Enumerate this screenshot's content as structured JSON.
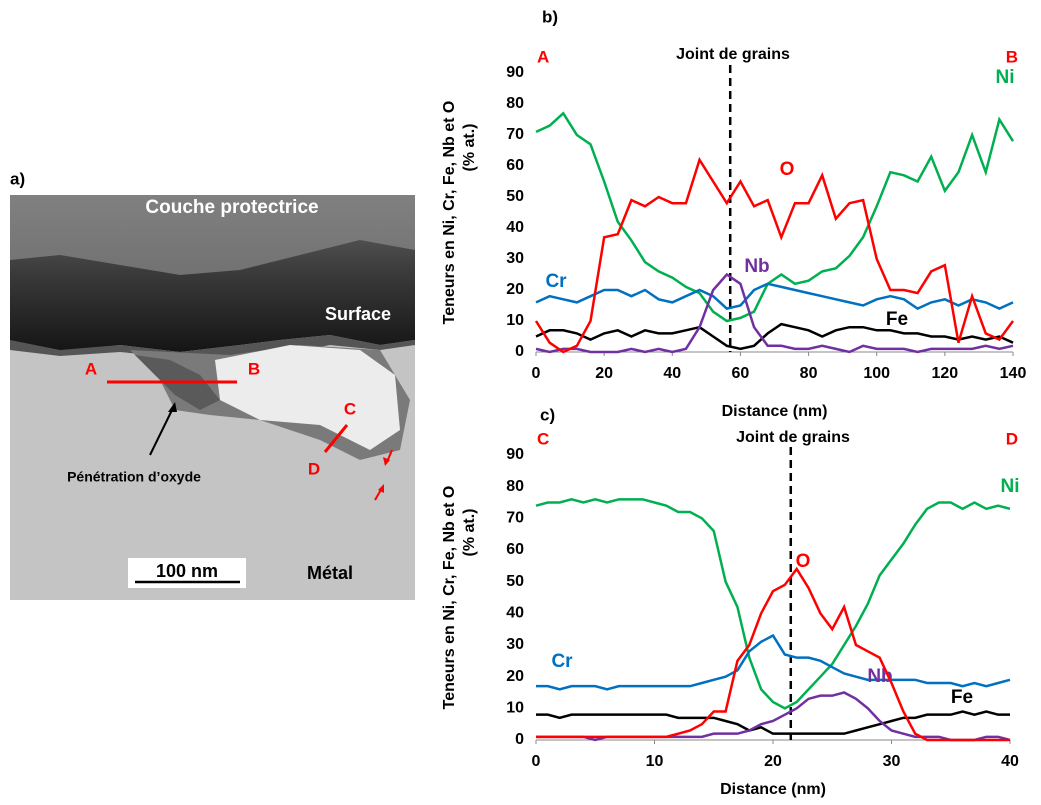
{
  "panel_a": {
    "label": "a)",
    "coating": "Couche protectrice",
    "surface": "Surface",
    "point_a": "A",
    "point_b": "B",
    "point_c": "C",
    "point_d": "D",
    "oxide": "Pénétration d’oxyde",
    "scale": "100 nm",
    "metal": "Métal"
  },
  "chart_data": [
    {
      "type": "line",
      "panel": "b)",
      "start": "A",
      "end": "B",
      "annotation": "Joint de grains",
      "boundary_x": 57,
      "y_label": "Teneurs en Ni, Cr, Fe, Nb et O",
      "y_label_unit": "(% at.)",
      "x_label": "Distance (nm)",
      "xlim": [
        0,
        140
      ],
      "xticks": [
        0,
        20,
        40,
        60,
        80,
        100,
        120,
        140
      ],
      "ylim": [
        0,
        90
      ],
      "yticks": [
        0,
        10,
        20,
        30,
        40,
        50,
        60,
        70,
        80,
        90
      ],
      "x": [
        0,
        4,
        8,
        12,
        16,
        20,
        24,
        28,
        32,
        36,
        40,
        44,
        48,
        52,
        56,
        60,
        64,
        68,
        72,
        76,
        80,
        84,
        88,
        92,
        96,
        100,
        104,
        108,
        112,
        116,
        120,
        124,
        128,
        132,
        136,
        140
      ],
      "series": [
        {
          "name": "Ni",
          "color": "#00b050",
          "values": [
            71,
            73,
            77,
            70,
            67,
            55,
            42,
            36,
            29,
            26,
            24,
            21,
            19,
            13,
            10,
            11,
            13,
            22,
            25,
            22,
            23,
            26,
            27,
            31,
            37,
            47,
            58,
            57,
            55,
            63,
            52,
            58,
            70,
            58,
            75,
            68
          ]
        },
        {
          "name": "Cr",
          "color": "#0070c0",
          "values": [
            16,
            18,
            17,
            16,
            18,
            20,
            20,
            18,
            20,
            17,
            16,
            18,
            20,
            18,
            14,
            15,
            20,
            22,
            21,
            20,
            19,
            18,
            17,
            16,
            15,
            17,
            18,
            17,
            14,
            16,
            17,
            15,
            17,
            16,
            14,
            16
          ]
        },
        {
          "name": "Fe",
          "color": "#000000",
          "values": [
            5,
            7,
            7,
            6,
            4,
            6,
            7,
            5,
            7,
            6,
            6,
            7,
            8,
            5,
            2,
            1,
            2,
            6,
            9,
            8,
            7,
            5,
            7,
            8,
            8,
            7,
            7,
            6,
            6,
            5,
            5,
            4,
            5,
            4,
            5,
            3
          ]
        },
        {
          "name": "Nb",
          "color": "#7030a0",
          "values": [
            1,
            0,
            1,
            1,
            0,
            0,
            0,
            1,
            0,
            1,
            0,
            1,
            8,
            20,
            25,
            22,
            8,
            2,
            2,
            1,
            1,
            2,
            1,
            0,
            2,
            1,
            1,
            1,
            0,
            1,
            1,
            1,
            1,
            2,
            1,
            2
          ]
        },
        {
          "name": "O",
          "color": "#ff0000",
          "values": [
            10,
            3,
            0,
            2,
            10,
            37,
            38,
            49,
            47,
            50,
            48,
            48,
            62,
            55,
            48,
            55,
            47,
            49,
            37,
            48,
            48,
            57,
            43,
            48,
            49,
            30,
            20,
            20,
            19,
            26,
            28,
            3,
            18,
            6,
            4,
            10
          ]
        }
      ]
    },
    {
      "type": "line",
      "panel": "c)",
      "start": "C",
      "end": "D",
      "annotation": "Joint de grains",
      "boundary_x": 21.5,
      "y_label": "Teneurs en Ni, Cr, Fe, Nb et O",
      "y_label_unit": "(% at.)",
      "x_label": "Distance (nm)",
      "xlim": [
        0,
        40
      ],
      "xticks": [
        0,
        10,
        20,
        30,
        40
      ],
      "ylim": [
        0,
        90
      ],
      "yticks": [
        0,
        10,
        20,
        30,
        40,
        50,
        60,
        70,
        80,
        90
      ],
      "x": [
        0,
        1,
        2,
        3,
        4,
        5,
        6,
        7,
        8,
        9,
        10,
        11,
        12,
        13,
        14,
        15,
        16,
        17,
        18,
        19,
        20,
        21,
        22,
        23,
        24,
        25,
        26,
        27,
        28,
        29,
        30,
        31,
        32,
        33,
        34,
        35,
        36,
        37,
        38,
        39,
        40
      ],
      "series": [
        {
          "name": "Ni",
          "color": "#00b050",
          "values": [
            74,
            75,
            75,
            76,
            75,
            76,
            75,
            76,
            76,
            76,
            75,
            74,
            72,
            72,
            70,
            66,
            50,
            42,
            26,
            16,
            12,
            10,
            12,
            16,
            20,
            24,
            30,
            36,
            43,
            52,
            57,
            62,
            68,
            73,
            75,
            75,
            73,
            75,
            73,
            74,
            73
          ]
        },
        {
          "name": "Cr",
          "color": "#0070c0",
          "values": [
            17,
            17,
            16,
            17,
            17,
            17,
            16,
            17,
            17,
            17,
            17,
            17,
            17,
            17,
            18,
            19,
            20,
            22,
            28,
            31,
            33,
            27,
            26,
            26,
            25,
            23,
            21,
            20,
            19,
            19,
            19,
            19,
            19,
            18,
            18,
            18,
            17,
            18,
            17,
            18,
            19
          ]
        },
        {
          "name": "Fe",
          "color": "#000000",
          "values": [
            8,
            8,
            7,
            8,
            8,
            8,
            8,
            8,
            8,
            8,
            8,
            8,
            7,
            7,
            7,
            7,
            6,
            5,
            3,
            4,
            2,
            2,
            2,
            2,
            2,
            2,
            2,
            3,
            4,
            5,
            6,
            7,
            7,
            8,
            8,
            8,
            9,
            8,
            9,
            8,
            8
          ]
        },
        {
          "name": "Nb",
          "color": "#7030a0",
          "values": [
            1,
            1,
            1,
            1,
            1,
            0,
            1,
            1,
            1,
            1,
            1,
            1,
            1,
            1,
            1,
            2,
            2,
            2,
            3,
            5,
            6,
            8,
            10,
            13,
            14,
            14,
            15,
            13,
            10,
            6,
            3,
            2,
            1,
            1,
            1,
            0,
            0,
            0,
            1,
            1,
            0
          ]
        },
        {
          "name": "O",
          "color": "#ff0000",
          "values": [
            1,
            1,
            1,
            1,
            1,
            1,
            1,
            1,
            1,
            1,
            1,
            1,
            2,
            3,
            5,
            9,
            9,
            25,
            30,
            40,
            47,
            49,
            54,
            48,
            40,
            35,
            42,
            30,
            28,
            26,
            18,
            9,
            2,
            0,
            0,
            0,
            0,
            0,
            0,
            0,
            0
          ]
        }
      ]
    }
  ]
}
